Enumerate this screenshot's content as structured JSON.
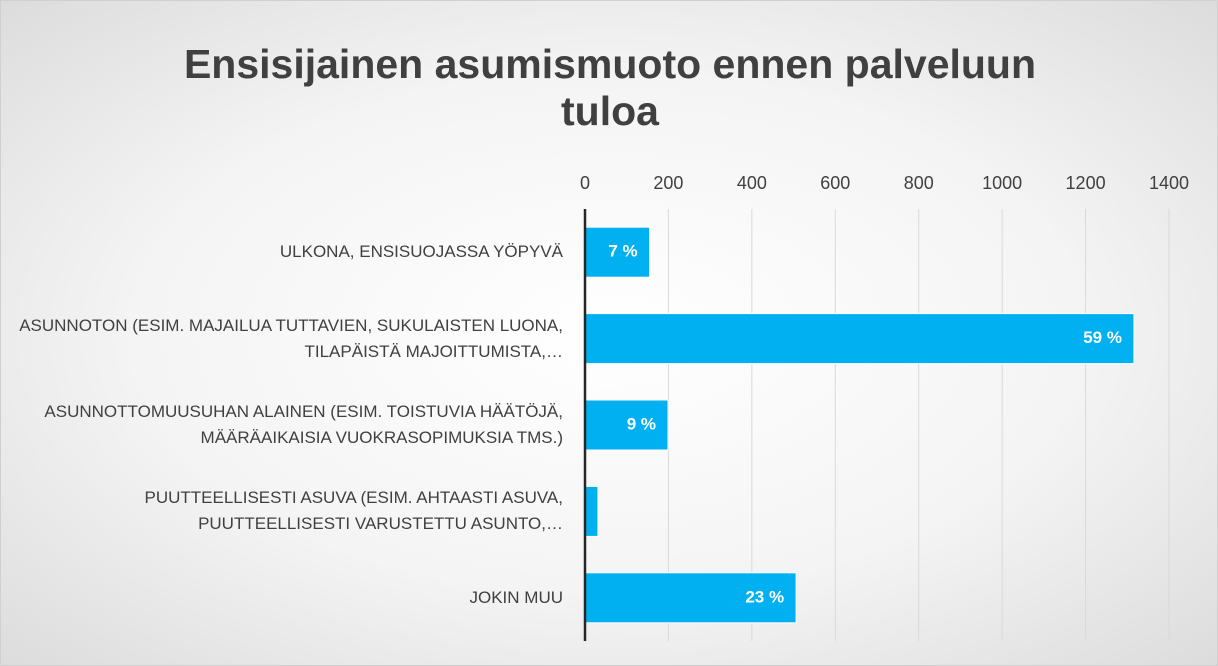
{
  "chart_data": {
    "type": "bar",
    "orientation": "horizontal",
    "title": "Ensisijainen asumismuoto ennen palveluun tuloa",
    "categories": [
      "ULKONA, ENSISUOJASSA YÖPYVÄ",
      "ASUNNOTON (ESIM. MAJAILUA TUTTAVIEN, SUKULAISTEN LUONA, TILAPÄISTÄ MAJOITTUMISTA,…",
      "ASUNNOTTOMUUSUHAN ALAINEN (ESIM. TOISTUVIA HÄÄTÖJÄ, MÄÄRÄAIKAISIA VUOKRASOPIMUKSIA TMS.)",
      "PUUTTEELLISESTI ASUVA (ESIM. AHTAASTI ASUVA, PUUTTEELLISESTI VARUSTETTU ASUNTO,…",
      "JOKIN MUU"
    ],
    "values": [
      155,
      1316,
      199,
      31,
      506
    ],
    "value_labels": [
      "7 %",
      "59 %",
      "9 %",
      null,
      "23 %"
    ],
    "color": "#00b0f0",
    "xlim": [
      0,
      1400
    ],
    "xticks": [
      0,
      200,
      400,
      600,
      800,
      1000,
      1200,
      1400
    ],
    "grid": true
  }
}
